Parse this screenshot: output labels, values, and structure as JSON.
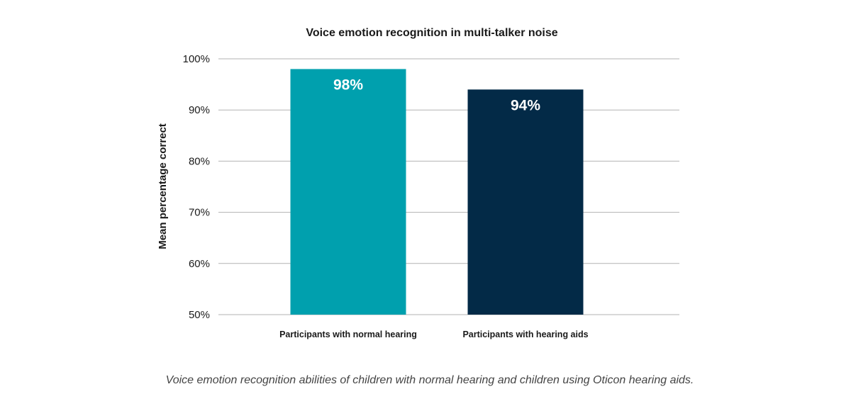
{
  "chart_data": {
    "type": "bar",
    "title": "Voice emotion recognition in multi-talker noise",
    "xlabel": "",
    "ylabel": "Mean percentage correct",
    "categories": [
      "Participants with normal hearing",
      "Participants with hearing aids"
    ],
    "values": [
      98,
      94
    ],
    "data_labels": [
      "98%",
      "94%"
    ],
    "bar_colors": [
      "#00a0ae",
      "#032a47"
    ],
    "ylim": [
      50,
      100
    ],
    "yticks": [
      50,
      60,
      70,
      80,
      90,
      100
    ],
    "ytick_labels": [
      "50%",
      "60%",
      "70%",
      "80%",
      "90%",
      "100%"
    ],
    "grid": true,
    "legend": "none"
  },
  "caption": "Voice emotion recognition abilities of children with normal hearing and children using Oticon hearing aids."
}
